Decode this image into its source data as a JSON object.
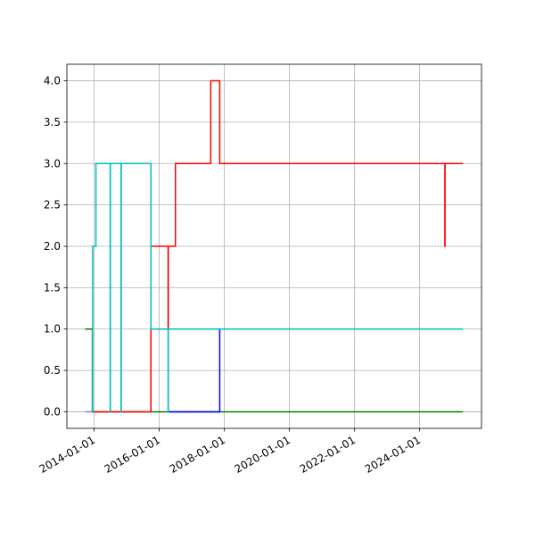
{
  "chart_data": {
    "type": "step",
    "xlim": [
      "2013-03-01",
      "2025-11-25"
    ],
    "xticks": [
      "2014-01-01",
      "2016-01-01",
      "2018-01-01",
      "2020-01-01",
      "2022-01-01",
      "2024-01-01"
    ],
    "ylim": [
      -0.2,
      4.2
    ],
    "yticks": [
      {
        "value": 0,
        "label": "0.0"
      },
      {
        "value": 0.5,
        "label": "0.5"
      },
      {
        "value": 1,
        "label": "1.0"
      },
      {
        "value": 1.5,
        "label": "1.5"
      },
      {
        "value": 2,
        "label": "2.0"
      },
      {
        "value": 2.5,
        "label": "2.5"
      },
      {
        "value": 3,
        "label": "3.0"
      },
      {
        "value": 3.5,
        "label": "3.5"
      },
      {
        "value": 4,
        "label": "4.0"
      }
    ],
    "grid": true,
    "series": [
      {
        "color": "#8080ff",
        "x": [
          "2013-09-22",
          "2014-01-01"
        ],
        "values": [
          0,
          0
        ]
      },
      {
        "color": "#008000",
        "x": [
          "2013-09-22",
          "2013-12-12",
          "2025-04-30"
        ],
        "values": [
          1,
          0,
          0
        ]
      },
      {
        "color": "#ff0000",
        "x": [
          "2014-01-01",
          "2015-09-30",
          "2016-04-10",
          "2016-04-12",
          "2016-07-01",
          "2017-08-01",
          "2017-11-10",
          "2024-10-10",
          "2024-10-12",
          "2025-04-30"
        ],
        "values": [
          0,
          2,
          1,
          2,
          3,
          4,
          3,
          2,
          3,
          3
        ]
      },
      {
        "color": "#0000ff",
        "x": [
          "2016-04-12",
          "2017-11-10",
          "2025-04-30"
        ],
        "values": [
          0,
          1,
          1
        ]
      },
      {
        "color": "#00bfbf",
        "x": [
          "2013-12-12",
          "2013-12-15",
          "2014-01-21",
          "2014-06-30",
          "2014-07-02",
          "2014-10-30",
          "2014-11-01",
          "2015-09-30",
          "2016-04-10",
          "2016-04-12",
          "2025-04-30"
        ],
        "values": [
          0,
          2,
          3,
          0,
          3,
          0,
          3,
          1,
          0,
          1,
          1
        ]
      }
    ]
  }
}
